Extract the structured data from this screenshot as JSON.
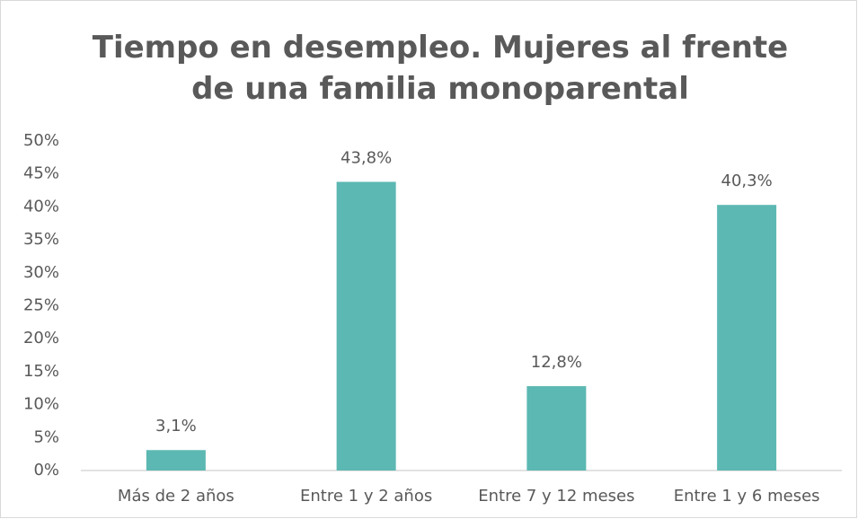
{
  "chart_data": {
    "type": "bar",
    "title": "Tiempo en desempleo. Mujeres al frente de una familia monoparental",
    "categories": [
      "Más de 2 años",
      "Entre 1 y 2 años",
      "Entre 7 y 12 meses",
      "Entre 1 y 6 meses"
    ],
    "values": [
      3.1,
      43.8,
      12.8,
      40.3
    ],
    "value_labels": [
      "3,1%",
      "43,8%",
      "12,8%",
      "40,3%"
    ],
    "color": "#5cb8b2",
    "ylim": [
      0,
      50
    ],
    "yticks": [
      {
        "value": 0,
        "label": "0%"
      },
      {
        "value": 5,
        "label": "5%"
      },
      {
        "value": 10,
        "label": "10%"
      },
      {
        "value": 15,
        "label": "15%"
      },
      {
        "value": 20,
        "label": "20%"
      },
      {
        "value": 25,
        "label": "25%"
      },
      {
        "value": 30,
        "label": "30%"
      },
      {
        "value": 35,
        "label": "35%"
      },
      {
        "value": 40,
        "label": "40%"
      },
      {
        "value": 45,
        "label": "45%"
      },
      {
        "value": 50,
        "label": "50%"
      }
    ],
    "grid": false
  }
}
